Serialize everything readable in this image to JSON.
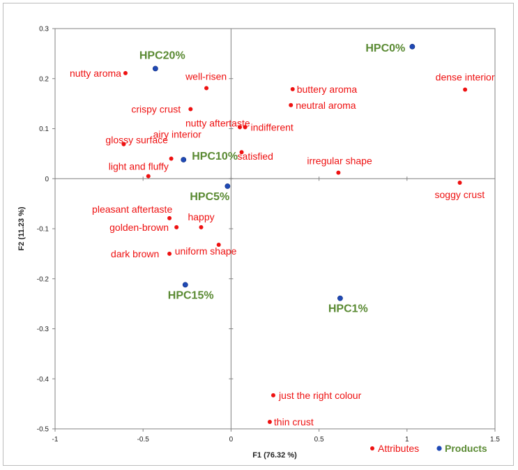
{
  "chart_data": {
    "type": "scatter",
    "title": "",
    "xlabel": "F1 (76.32 %)",
    "ylabel": "F2 (11.23 %)",
    "xlim": [
      -1,
      1.5
    ],
    "ylim": [
      -0.5,
      0.3
    ],
    "x_ticks": [
      "-1",
      "-0.5",
      "0",
      "0.5",
      "1",
      "1.5"
    ],
    "y_ticks": [
      "0.3",
      "0.2",
      "0.1",
      "0",
      "-0.1",
      "-0.2",
      "-0.3",
      "-0.4",
      "-0.5"
    ],
    "colors": {
      "attributes": "#ee1111",
      "products": "#1f49b5",
      "product_label": "#5a8a33"
    },
    "series": [
      {
        "name": "Attributes",
        "points": [
          {
            "label": "nutty aroma",
            "x": -0.6,
            "y": 0.211
          },
          {
            "label": "well-risen",
            "x": -0.14,
            "y": 0.181
          },
          {
            "label": "buttery aroma",
            "x": 0.35,
            "y": 0.179
          },
          {
            "label": "dense interior",
            "x": 1.33,
            "y": 0.178
          },
          {
            "label": "neutral aroma",
            "x": 0.34,
            "y": 0.147
          },
          {
            "label": "crispy crust",
            "x": -0.23,
            "y": 0.139
          },
          {
            "label": "nutty aftertaste",
            "x": 0.05,
            "y": 0.103
          },
          {
            "label": "indifferent",
            "x": 0.08,
            "y": 0.103
          },
          {
            "label": "glossy surface",
            "x": -0.61,
            "y": 0.069
          },
          {
            "label": "airy interior",
            "x": -0.34,
            "y": 0.04
          },
          {
            "label": "satisfied",
            "x": 0.06,
            "y": 0.053
          },
          {
            "label": "irregular shape",
            "x": 0.61,
            "y": 0.012
          },
          {
            "label": "light and fluffy",
            "x": -0.47,
            "y": 0.005
          },
          {
            "label": "soggy crust",
            "x": 1.3,
            "y": -0.008
          },
          {
            "label": "pleasant aftertaste",
            "x": -0.35,
            "y": -0.079
          },
          {
            "label": "happy",
            "x": -0.17,
            "y": -0.097
          },
          {
            "label": "golden-brown",
            "x": -0.31,
            "y": -0.097
          },
          {
            "label": "uniform shape",
            "x": -0.07,
            "y": -0.132
          },
          {
            "label": "dark brown",
            "x": -0.35,
            "y": -0.15
          },
          {
            "label": "just the right colour",
            "x": 0.24,
            "y": -0.433
          },
          {
            "label": "thin crust",
            "x": 0.22,
            "y": -0.486
          }
        ]
      },
      {
        "name": "Products",
        "points": [
          {
            "label": "HPC0%",
            "x": 1.03,
            "y": 0.264
          },
          {
            "label": "HPC20%",
            "x": -0.43,
            "y": 0.22
          },
          {
            "label": "HPC10%",
            "x": -0.27,
            "y": 0.038
          },
          {
            "label": "HPC5%",
            "x": -0.02,
            "y": -0.015
          },
          {
            "label": "HPC15%",
            "x": -0.26,
            "y": -0.212
          },
          {
            "label": "HPC1%",
            "x": 0.62,
            "y": -0.239
          }
        ]
      }
    ],
    "legend": [
      {
        "label": "Attributes",
        "series": "Attributes"
      },
      {
        "label": "Products",
        "series": "Products"
      }
    ],
    "legend_position": "bottom-right"
  }
}
